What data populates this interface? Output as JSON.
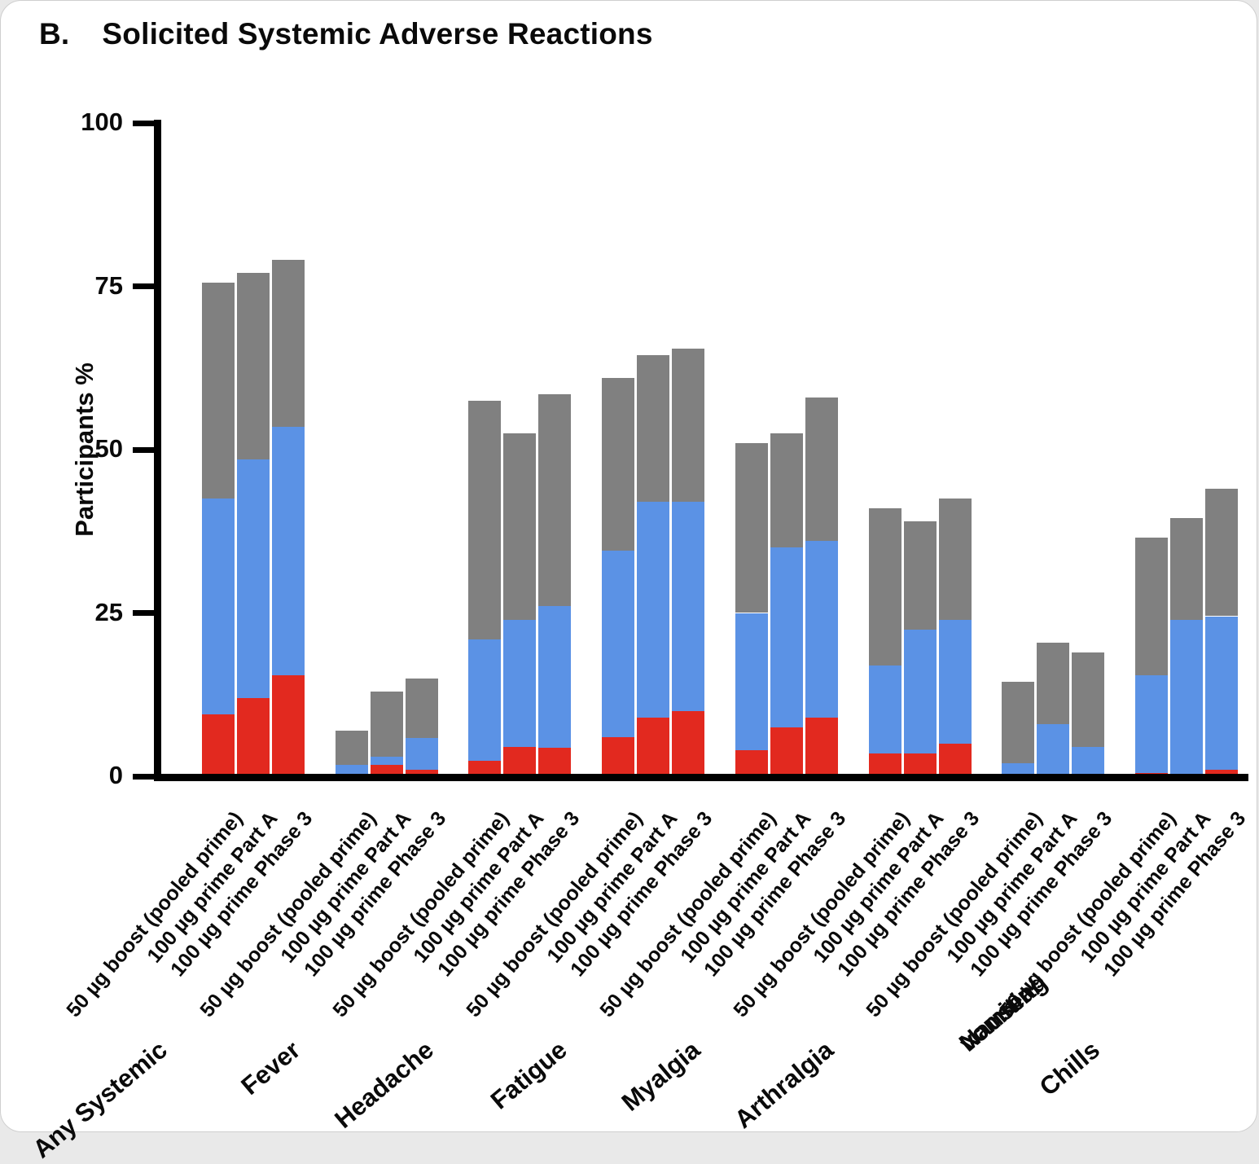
{
  "title": {
    "prefix": "B.",
    "text": "Solicited Systemic Adverse Reactions"
  },
  "chart_data": {
    "type": "bar",
    "stacked": true,
    "title": "B. Solicited Systemic Adverse Reactions",
    "xlabel": "",
    "ylabel": "Participants %",
    "ylim": [
      0,
      100
    ],
    "yticks": [
      0,
      25,
      50,
      75,
      100
    ],
    "grid": false,
    "legend_position": "none",
    "axis_color": "#000000",
    "background": "#ffffff",
    "series_colors": {
      "red": "#E2291F",
      "blue": "#5B92E5",
      "gray": "#808080"
    },
    "stack_order_bottom_to_top": [
      "red",
      "blue",
      "gray"
    ],
    "bar_labels": [
      "50 µg boost (pooled prime)",
      "100 µg prime Part A",
      "100 µg prime Phase 3"
    ],
    "categories": [
      "Any Systemic",
      "Fever",
      "Headache",
      "Fatigue",
      "Myalgia",
      "Arthralgia",
      "Nausea/vomiting",
      "Chills"
    ],
    "groups": [
      {
        "category": "Any Systemic",
        "bars": [
          {
            "label": "50 µg boost (pooled prime)",
            "segments": {
              "red": 9.5,
              "blue": 33.0,
              "gray": 33.0
            },
            "total": 75.5
          },
          {
            "label": "100 µg prime Part A",
            "segments": {
              "red": 12.0,
              "blue": 36.5,
              "gray": 28.5
            },
            "total": 77.0
          },
          {
            "label": "100 µg prime Phase 3",
            "segments": {
              "red": 15.5,
              "blue": 38.0,
              "gray": 25.5
            },
            "total": 79.0
          }
        ]
      },
      {
        "category": "Fever",
        "bars": [
          {
            "label": "50 µg boost (pooled prime)",
            "segments": {
              "red": 0.0,
              "blue": 1.7,
              "gray": 5.3
            },
            "total": 7.0
          },
          {
            "label": "100 µg prime Part A",
            "segments": {
              "red": 1.8,
              "blue": 1.2,
              "gray": 10.0
            },
            "total": 13.0
          },
          {
            "label": "100 µg prime Phase 3",
            "segments": {
              "red": 1.0,
              "blue": 4.8,
              "gray": 9.2
            },
            "total": 15.0
          }
        ]
      },
      {
        "category": "Headache",
        "bars": [
          {
            "label": "50 µg boost (pooled prime)",
            "segments": {
              "red": 2.4,
              "blue": 18.6,
              "gray": 36.5
            },
            "total": 57.5
          },
          {
            "label": "100 µg prime Part A",
            "segments": {
              "red": 4.5,
              "blue": 19.5,
              "gray": 28.5
            },
            "total": 52.5
          },
          {
            "label": "100 µg prime Phase 3",
            "segments": {
              "red": 4.4,
              "blue": 21.6,
              "gray": 32.5
            },
            "total": 58.5
          }
        ]
      },
      {
        "category": "Fatigue",
        "bars": [
          {
            "label": "50 µg boost (pooled prime)",
            "segments": {
              "red": 6.0,
              "blue": 28.5,
              "gray": 26.5
            },
            "total": 61.0
          },
          {
            "label": "100 µg prime Part A",
            "segments": {
              "red": 9.0,
              "blue": 33.0,
              "gray": 22.5
            },
            "total": 64.5
          },
          {
            "label": "100 µg prime Phase 3",
            "segments": {
              "red": 10.0,
              "blue": 32.0,
              "gray": 23.5
            },
            "total": 65.5
          }
        ]
      },
      {
        "category": "Myalgia",
        "bars": [
          {
            "label": "50 µg boost (pooled prime)",
            "segments": {
              "red": 4.0,
              "blue": 21.0,
              "gray": 26.0
            },
            "total": 51.0
          },
          {
            "label": "100 µg prime Part A",
            "segments": {
              "red": 7.5,
              "blue": 27.5,
              "gray": 17.5
            },
            "total": 52.5
          },
          {
            "label": "100 µg prime Phase 3",
            "segments": {
              "red": 9.0,
              "blue": 27.0,
              "gray": 22.0
            },
            "total": 58.0
          }
        ]
      },
      {
        "category": "Arthralgia",
        "bars": [
          {
            "label": "50 µg boost (pooled prime)",
            "segments": {
              "red": 3.5,
              "blue": 13.5,
              "gray": 24.0
            },
            "total": 41.0
          },
          {
            "label": "100 µg prime Part A",
            "segments": {
              "red": 3.5,
              "blue": 19.0,
              "gray": 16.5
            },
            "total": 39.0
          },
          {
            "label": "100 µg prime Phase 3",
            "segments": {
              "red": 5.0,
              "blue": 19.0,
              "gray": 18.5
            },
            "total": 42.5
          }
        ]
      },
      {
        "category": "Nausea/vomiting",
        "bars": [
          {
            "label": "50 µg boost (pooled prime)",
            "segments": {
              "red": 0.0,
              "blue": 2.0,
              "gray": 12.5
            },
            "total": 14.5
          },
          {
            "label": "100 µg prime Part A",
            "segments": {
              "red": 0.0,
              "blue": 8.0,
              "gray": 12.5
            },
            "total": 20.5
          },
          {
            "label": "100 µg prime Phase 3",
            "segments": {
              "red": 0.0,
              "blue": 4.5,
              "gray": 14.5
            },
            "total": 19.0
          }
        ]
      },
      {
        "category": "Chills",
        "bars": [
          {
            "label": "50 µg boost (pooled prime)",
            "segments": {
              "red": 0.5,
              "blue": 15.0,
              "gray": 21.0
            },
            "total": 36.5
          },
          {
            "label": "100 µg prime Part A",
            "segments": {
              "red": 0.3,
              "blue": 23.7,
              "gray": 15.5
            },
            "total": 39.5
          },
          {
            "label": "100 µg prime Phase 3",
            "segments": {
              "red": 1.0,
              "blue": 23.5,
              "gray": 19.5
            },
            "total": 44.0
          }
        ]
      }
    ]
  }
}
